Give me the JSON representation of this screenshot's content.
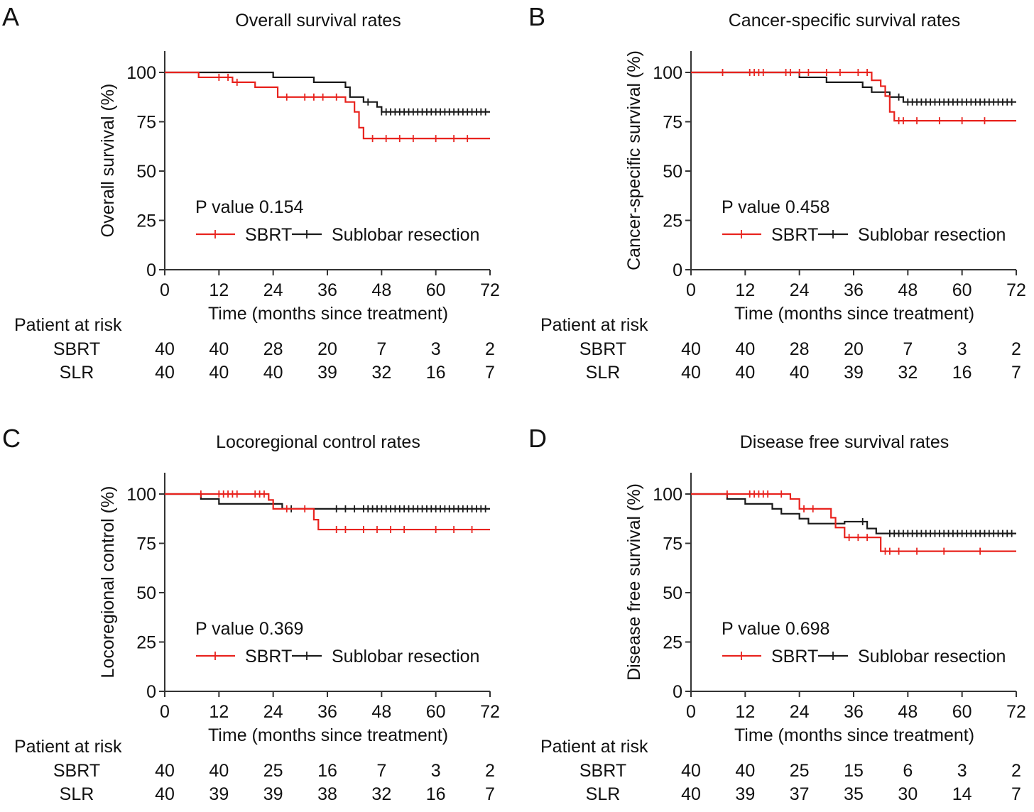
{
  "colors": {
    "sbrt": "#e8231e",
    "slr": "#1a1a1a",
    "axis": "#333333"
  },
  "common": {
    "xlabel": "Time (months since treatment)",
    "risk_header": "Patient at risk",
    "risk_row_labels": [
      "SBRT",
      "SLR"
    ],
    "legend_sbrt": "SBRT",
    "legend_slr": "Sublobar resection"
  },
  "chart_data": [
    {
      "panel": "A",
      "type": "line",
      "title": "Overall survival rates",
      "xlabel": "Time (months since treatment)",
      "ylabel": "Overall survival (%)",
      "xlim": [
        0,
        72
      ],
      "ylim": [
        0,
        110
      ],
      "xticks": [
        0,
        12,
        24,
        36,
        48,
        60,
        72
      ],
      "yticks": [
        0,
        25,
        50,
        75,
        100
      ],
      "p_value": "P value 0.154",
      "legend": "bottom-center",
      "series": [
        {
          "name": "SBRT",
          "color": "#e8231e",
          "steps": [
            [
              0,
              100
            ],
            [
              7.5,
              97.5
            ],
            [
              15,
              95
            ],
            [
              20,
              92.5
            ],
            [
              25,
              87.5
            ],
            [
              40,
              85
            ],
            [
              42,
              80
            ],
            [
              43,
              72
            ],
            [
              44,
              66.5
            ],
            [
              72,
              66.5
            ]
          ],
          "censor": [
            12,
            14,
            16,
            27,
            31,
            33,
            35,
            38,
            46,
            49,
            52,
            55,
            60,
            64,
            67
          ]
        },
        {
          "name": "Sublobar resection",
          "color": "#1a1a1a",
          "steps": [
            [
              0,
              100
            ],
            [
              24,
              97.5
            ],
            [
              33,
              95
            ],
            [
              40,
              92.5
            ],
            [
              41,
              87.5
            ],
            [
              44,
              85
            ],
            [
              47,
              82.5
            ],
            [
              48,
              80
            ],
            [
              72,
              80
            ]
          ],
          "censor": [
            45,
            48,
            49,
            50,
            51,
            52,
            53,
            54,
            55,
            56,
            57,
            58,
            59,
            60,
            61,
            62,
            63,
            64,
            65,
            66,
            67,
            68,
            69,
            70,
            71
          ]
        }
      ],
      "risk_table": {
        "times": [
          0,
          12,
          24,
          36,
          48,
          60,
          72
        ],
        "SBRT": [
          "40",
          "40",
          "28",
          "20",
          "7",
          "3",
          "2"
        ],
        "SLR": [
          "40",
          "40",
          "40",
          "39",
          "32",
          "16",
          "7"
        ]
      }
    },
    {
      "panel": "B",
      "type": "line",
      "title": "Cancer-specific survival rates",
      "xlabel": "Time (months since treatment)",
      "ylabel": "Cancer-specific survival (%)",
      "xlim": [
        0,
        72
      ],
      "ylim": [
        0,
        110
      ],
      "xticks": [
        0,
        12,
        24,
        36,
        48,
        60,
        72
      ],
      "yticks": [
        0,
        25,
        50,
        75,
        100
      ],
      "p_value": "P value 0.458",
      "legend": "bottom-center",
      "series": [
        {
          "name": "SBRT",
          "color": "#e8231e",
          "steps": [
            [
              0,
              100
            ],
            [
              40,
              96
            ],
            [
              42,
              93
            ],
            [
              43,
              88
            ],
            [
              44,
              80
            ],
            [
              45,
              75.5
            ],
            [
              72,
              75.5
            ]
          ],
          "censor": [
            7,
            13,
            14,
            15,
            16,
            21,
            22,
            24,
            26,
            30,
            33,
            37,
            39,
            46,
            47,
            50,
            55,
            60,
            65
          ]
        },
        {
          "name": "Sublobar resection",
          "color": "#1a1a1a",
          "steps": [
            [
              0,
              100
            ],
            [
              24,
              97.5
            ],
            [
              30,
              95
            ],
            [
              38,
              92.5
            ],
            [
              40,
              90
            ],
            [
              44,
              87.5
            ],
            [
              47,
              85
            ],
            [
              72,
              85
            ]
          ],
          "censor": [
            43,
            46,
            48,
            49,
            50,
            51,
            52,
            53,
            54,
            55,
            56,
            57,
            58,
            59,
            60,
            61,
            62,
            63,
            64,
            65,
            66,
            67,
            68,
            69,
            70,
            71
          ]
        }
      ],
      "risk_table": {
        "times": [
          0,
          12,
          24,
          36,
          48,
          60,
          72
        ],
        "SBRT": [
          "40",
          "40",
          "28",
          "20",
          "7",
          "3",
          "2"
        ],
        "SLR": [
          "40",
          "40",
          "40",
          "39",
          "32",
          "16",
          "7"
        ]
      }
    },
    {
      "panel": "C",
      "type": "line",
      "title": "Locoregional control rates",
      "xlabel": "Time (months since treatment)",
      "ylabel": "Locoregional control (%)",
      "xlim": [
        0,
        72
      ],
      "ylim": [
        0,
        110
      ],
      "xticks": [
        0,
        12,
        24,
        36,
        48,
        60,
        72
      ],
      "yticks": [
        0,
        25,
        50,
        75,
        100
      ],
      "p_value": "P value 0.369",
      "legend": "bottom-center",
      "series": [
        {
          "name": "SBRT",
          "color": "#e8231e",
          "steps": [
            [
              0,
              100
            ],
            [
              23,
              97
            ],
            [
              24,
              92.5
            ],
            [
              33,
              87
            ],
            [
              34,
              82
            ],
            [
              72,
              82
            ]
          ],
          "censor": [
            8,
            12,
            13,
            14,
            15,
            16,
            20,
            21,
            22,
            27,
            31,
            38,
            40,
            44,
            47,
            50,
            53,
            60,
            64,
            68
          ]
        },
        {
          "name": "Sublobar resection",
          "color": "#1a1a1a",
          "steps": [
            [
              0,
              100
            ],
            [
              8,
              97.5
            ],
            [
              12,
              95
            ],
            [
              24,
              95
            ],
            [
              26,
              92.5
            ],
            [
              72,
              92.5
            ]
          ],
          "censor": [
            28,
            38,
            40,
            42,
            44,
            45,
            46,
            47,
            48,
            49,
            50,
            51,
            52,
            53,
            54,
            55,
            56,
            57,
            58,
            59,
            60,
            61,
            62,
            63,
            64,
            65,
            66,
            67,
            68,
            69,
            70,
            71
          ]
        }
      ],
      "risk_table": {
        "times": [
          0,
          12,
          24,
          36,
          48,
          60,
          72
        ],
        "SBRT": [
          "40",
          "40",
          "25",
          "16",
          "7",
          "3",
          "2"
        ],
        "SLR": [
          "40",
          "39",
          "39",
          "38",
          "32",
          "16",
          "7"
        ]
      }
    },
    {
      "panel": "D",
      "type": "line",
      "title": "Disease free survival rates",
      "xlabel": "Time (months since treatment)",
      "ylabel": "Disease free survival (%)",
      "xlim": [
        0,
        72
      ],
      "ylim": [
        0,
        110
      ],
      "xticks": [
        0,
        12,
        24,
        36,
        48,
        60,
        72
      ],
      "yticks": [
        0,
        25,
        50,
        75,
        100
      ],
      "p_value": "P value 0.698",
      "legend": "bottom-center",
      "series": [
        {
          "name": "SBRT",
          "color": "#e8231e",
          "steps": [
            [
              0,
              100
            ],
            [
              22,
              97.5
            ],
            [
              24,
              92.5
            ],
            [
              31,
              88
            ],
            [
              32,
              83
            ],
            [
              34,
              78
            ],
            [
              42,
              71
            ],
            [
              72,
              71
            ]
          ],
          "censor": [
            8,
            13,
            14,
            15,
            16,
            17,
            20,
            25,
            27,
            35,
            37,
            39,
            43,
            44,
            46,
            50,
            56,
            64
          ]
        },
        {
          "name": "Sublobar resection",
          "color": "#1a1a1a",
          "steps": [
            [
              0,
              100
            ],
            [
              8,
              97.5
            ],
            [
              12,
              95
            ],
            [
              18,
              92.5
            ],
            [
              20,
              90
            ],
            [
              24,
              87.5
            ],
            [
              26,
              85
            ],
            [
              34,
              86
            ],
            [
              39,
              82.5
            ],
            [
              41,
              80
            ],
            [
              72,
              80
            ]
          ],
          "censor": [
            38,
            44,
            45,
            46,
            47,
            48,
            49,
            50,
            51,
            52,
            53,
            54,
            55,
            56,
            57,
            58,
            59,
            60,
            61,
            62,
            63,
            64,
            65,
            66,
            67,
            68,
            69,
            70,
            71
          ]
        }
      ],
      "risk_table": {
        "times": [
          0,
          12,
          24,
          36,
          48,
          60,
          72
        ],
        "SBRT": [
          "40",
          "40",
          "25",
          "15",
          "6",
          "3",
          "2"
        ],
        "SLR": [
          "40",
          "39",
          "37",
          "35",
          "30",
          "14",
          "7"
        ]
      }
    }
  ]
}
